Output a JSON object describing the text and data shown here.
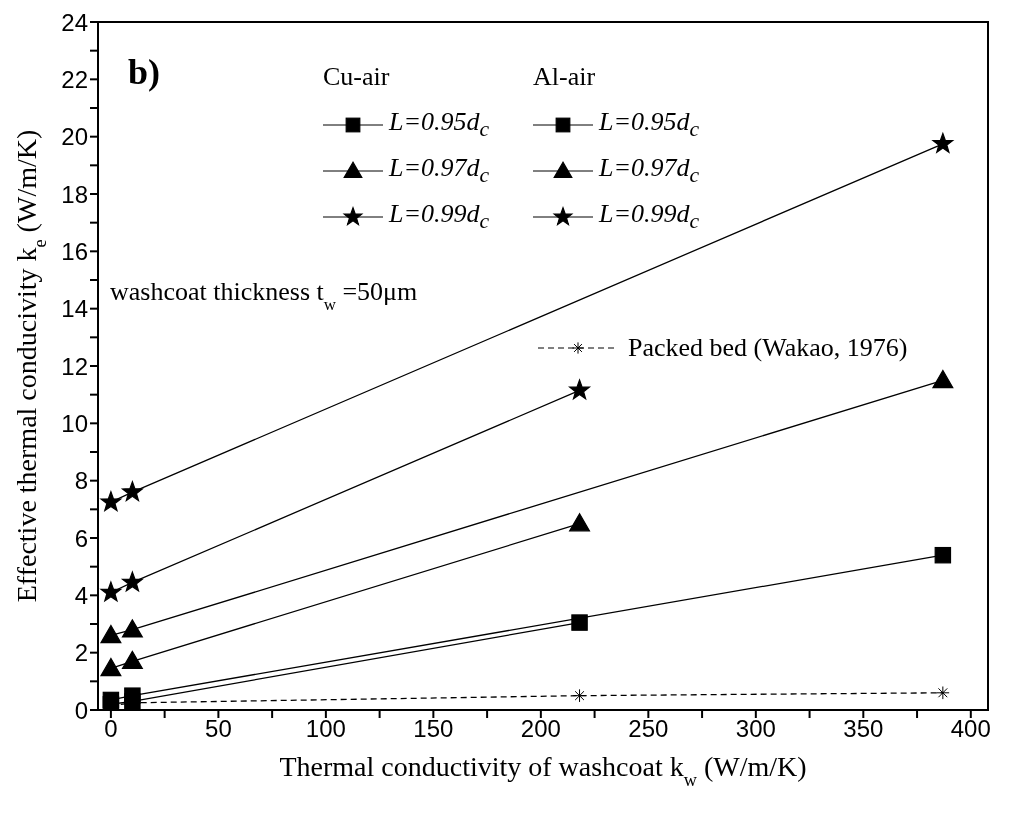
{
  "chart_data": {
    "type": "line",
    "xlabel": "Thermal conductivity of washcoat k$_{w}$ (W/m/K)",
    "ylabel": "Effective thermal conducivity k$_{e}$ (W/m/K)",
    "annotations": [
      "b)",
      "washcoat thickness t$_{w}$=50μm",
      "Cu-air",
      "Al-air"
    ],
    "legend": "top",
    "grid": false,
    "line_style": "solid",
    "xlim": [
      -6,
      408
    ],
    "xticks": [
      0,
      {
        "value": 25,
        "label": null
      },
      50,
      {
        "value": 75,
        "label": null
      },
      100,
      {
        "value": 125,
        "label": null
      },
      150,
      {
        "value": 175,
        "label": null
      },
      200,
      {
        "value": 225,
        "label": null
      },
      250,
      {
        "value": 275,
        "label": null
      },
      300,
      {
        "value": 325,
        "label": null
      },
      350,
      {
        "value": 375,
        "label": null
      },
      400
    ],
    "ylim": [
      0,
      24
    ],
    "yticks": [
      0,
      {
        "value": 1,
        "label": null
      },
      2,
      {
        "value": 3,
        "label": null
      },
      4,
      {
        "value": 5,
        "label": null
      },
      6,
      {
        "value": 7,
        "label": null
      },
      8,
      {
        "value": 9,
        "label": null
      },
      10,
      {
        "value": 11,
        "label": null
      },
      12,
      {
        "value": 13,
        "label": null
      },
      14,
      {
        "value": 15,
        "label": null
      },
      16,
      {
        "value": 17,
        "label": null
      },
      18,
      {
        "value": 19,
        "label": null
      },
      20,
      {
        "value": 21,
        "label": null
      },
      22,
      {
        "value": 23,
        "label": null
      },
      24
    ],
    "series": [
      {
        "name": "L=0.95d$_{c}$",
        "color": "#000000",
        "marker": "square",
        "x": [
          0,
          10,
          387
        ],
        "values": [
          0.35,
          0.5,
          5.4
        ]
      },
      {
        "name": "L=0.97d$_{c}$",
        "color": "#000000",
        "marker": "triangle",
        "x": [
          0,
          10,
          387
        ],
        "values": [
          2.6,
          2.8,
          11.5
        ]
      },
      {
        "name": "L=0.99d$_{c}$",
        "color": "#000000",
        "marker": "star",
        "x": [
          0,
          10,
          387
        ],
        "values": [
          7.25,
          7.6,
          19.75
        ]
      },
      {
        "name": "L=0.95d$_{c}$",
        "color": "#000000",
        "marker": "square",
        "x": [
          0,
          10,
          218
        ],
        "values": [
          0.2,
          0.3,
          3.05
        ]
      },
      {
        "name": "L=0.97d$_{c}$",
        "color": "#000000",
        "marker": "triangle",
        "x": [
          0,
          10,
          218
        ],
        "values": [
          1.45,
          1.7,
          6.5
        ]
      },
      {
        "name": "L=0.99d$_{c}$",
        "color": "#000000",
        "marker": "star",
        "x": [
          0,
          10,
          218
        ],
        "values": [
          4.1,
          4.45,
          11.15
        ]
      },
      {
        "name": "Packed bed (Wakao, 1976)",
        "color": "#000000",
        "marker": "cross",
        "line_style": "dashed",
        "x": [
          0,
          10,
          218,
          387
        ],
        "values": [
          0.15,
          0.25,
          0.5,
          0.6
        ]
      }
    ]
  }
}
